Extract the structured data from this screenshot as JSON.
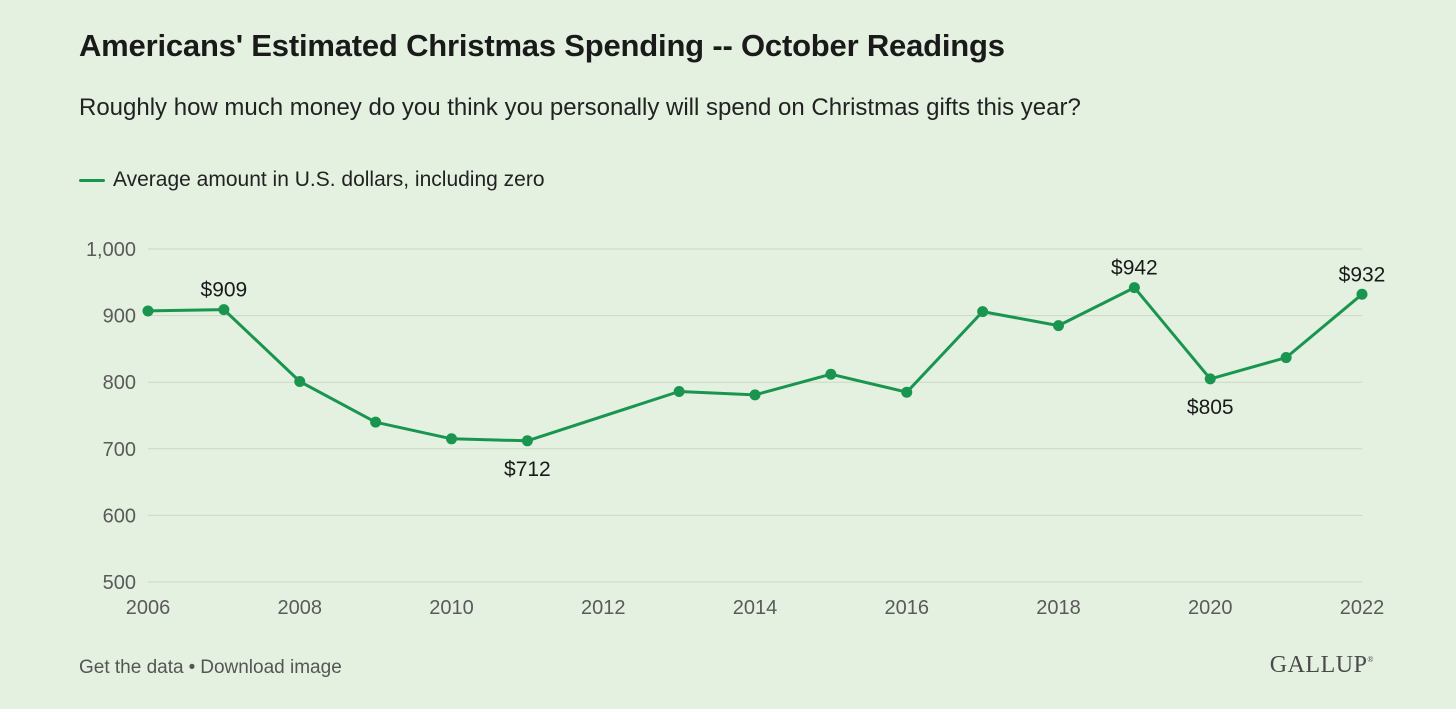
{
  "footer": {
    "get_data": "Get the data",
    "separator": "•",
    "download": "Download image",
    "brand": "GALLUP",
    "brand_mark": "®"
  },
  "colors": {
    "line": "#1a9550",
    "grid": "#c9d9c5",
    "axis_text": "#5a5a5a",
    "label_text": "#1a1a1a"
  },
  "chart_data": {
    "type": "line",
    "title": "Americans' Estimated Christmas Spending -- October Readings",
    "subtitle": "Roughly how much money do you think you personally will spend on Christmas gifts this year?",
    "xlabel": "",
    "ylabel": "",
    "xlim": [
      2006,
      2022
    ],
    "ylim": [
      500,
      1000
    ],
    "x_ticks": [
      2006,
      2008,
      2010,
      2012,
      2014,
      2016,
      2018,
      2020,
      2022
    ],
    "y_ticks": [
      500,
      600,
      700,
      800,
      900,
      1000
    ],
    "y_tick_labels": [
      "500",
      "600",
      "700",
      "800",
      "900",
      "1,000"
    ],
    "grid": true,
    "legend_position": "top-left",
    "series": [
      {
        "name": "Average amount in U.S. dollars, including zero",
        "x": [
          2006,
          2007,
          2008,
          2009,
          2010,
          2011,
          2013,
          2014,
          2015,
          2016,
          2017,
          2018,
          2019,
          2020,
          2021,
          2022
        ],
        "values": [
          907,
          909,
          801,
          740,
          715,
          712,
          786,
          781,
          812,
          785,
          906,
          885,
          942,
          805,
          837,
          932
        ]
      }
    ],
    "annotations": [
      {
        "x": 2007,
        "y": 909,
        "text": "$909",
        "side": "above"
      },
      {
        "x": 2011,
        "y": 712,
        "text": "$712",
        "side": "below"
      },
      {
        "x": 2019,
        "y": 942,
        "text": "$942",
        "side": "above"
      },
      {
        "x": 2020,
        "y": 805,
        "text": "$805",
        "side": "below"
      },
      {
        "x": 2022,
        "y": 932,
        "text": "$932",
        "side": "above"
      }
    ]
  }
}
